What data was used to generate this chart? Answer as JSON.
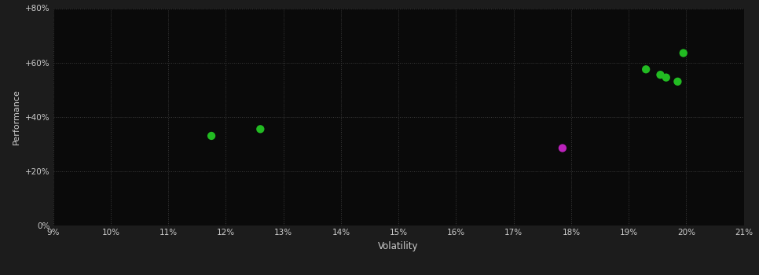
{
  "xlabel": "Volatility",
  "ylabel": "Performance",
  "background_color": "#1c1c1c",
  "plot_bg_color": "#0a0a0a",
  "grid_color": "#3a3a3a",
  "text_color": "#cccccc",
  "green_points": [
    [
      11.75,
      33.0
    ],
    [
      12.6,
      35.5
    ],
    [
      19.3,
      57.5
    ],
    [
      19.55,
      55.5
    ],
    [
      19.65,
      54.5
    ],
    [
      19.85,
      53.0
    ],
    [
      19.95,
      63.5
    ]
  ],
  "magenta_points": [
    [
      17.85,
      28.5
    ]
  ],
  "green_color": "#22bb22",
  "magenta_color": "#bb22bb",
  "xlim": [
    9,
    21
  ],
  "ylim": [
    0,
    80
  ],
  "xticks": [
    9,
    10,
    11,
    12,
    13,
    14,
    15,
    16,
    17,
    18,
    19,
    20,
    21
  ],
  "yticks": [
    0,
    20,
    40,
    60,
    80
  ],
  "ytick_labels": [
    "0%",
    "+20%",
    "+40%",
    "+60%",
    "+80%"
  ],
  "marker_size": 55
}
